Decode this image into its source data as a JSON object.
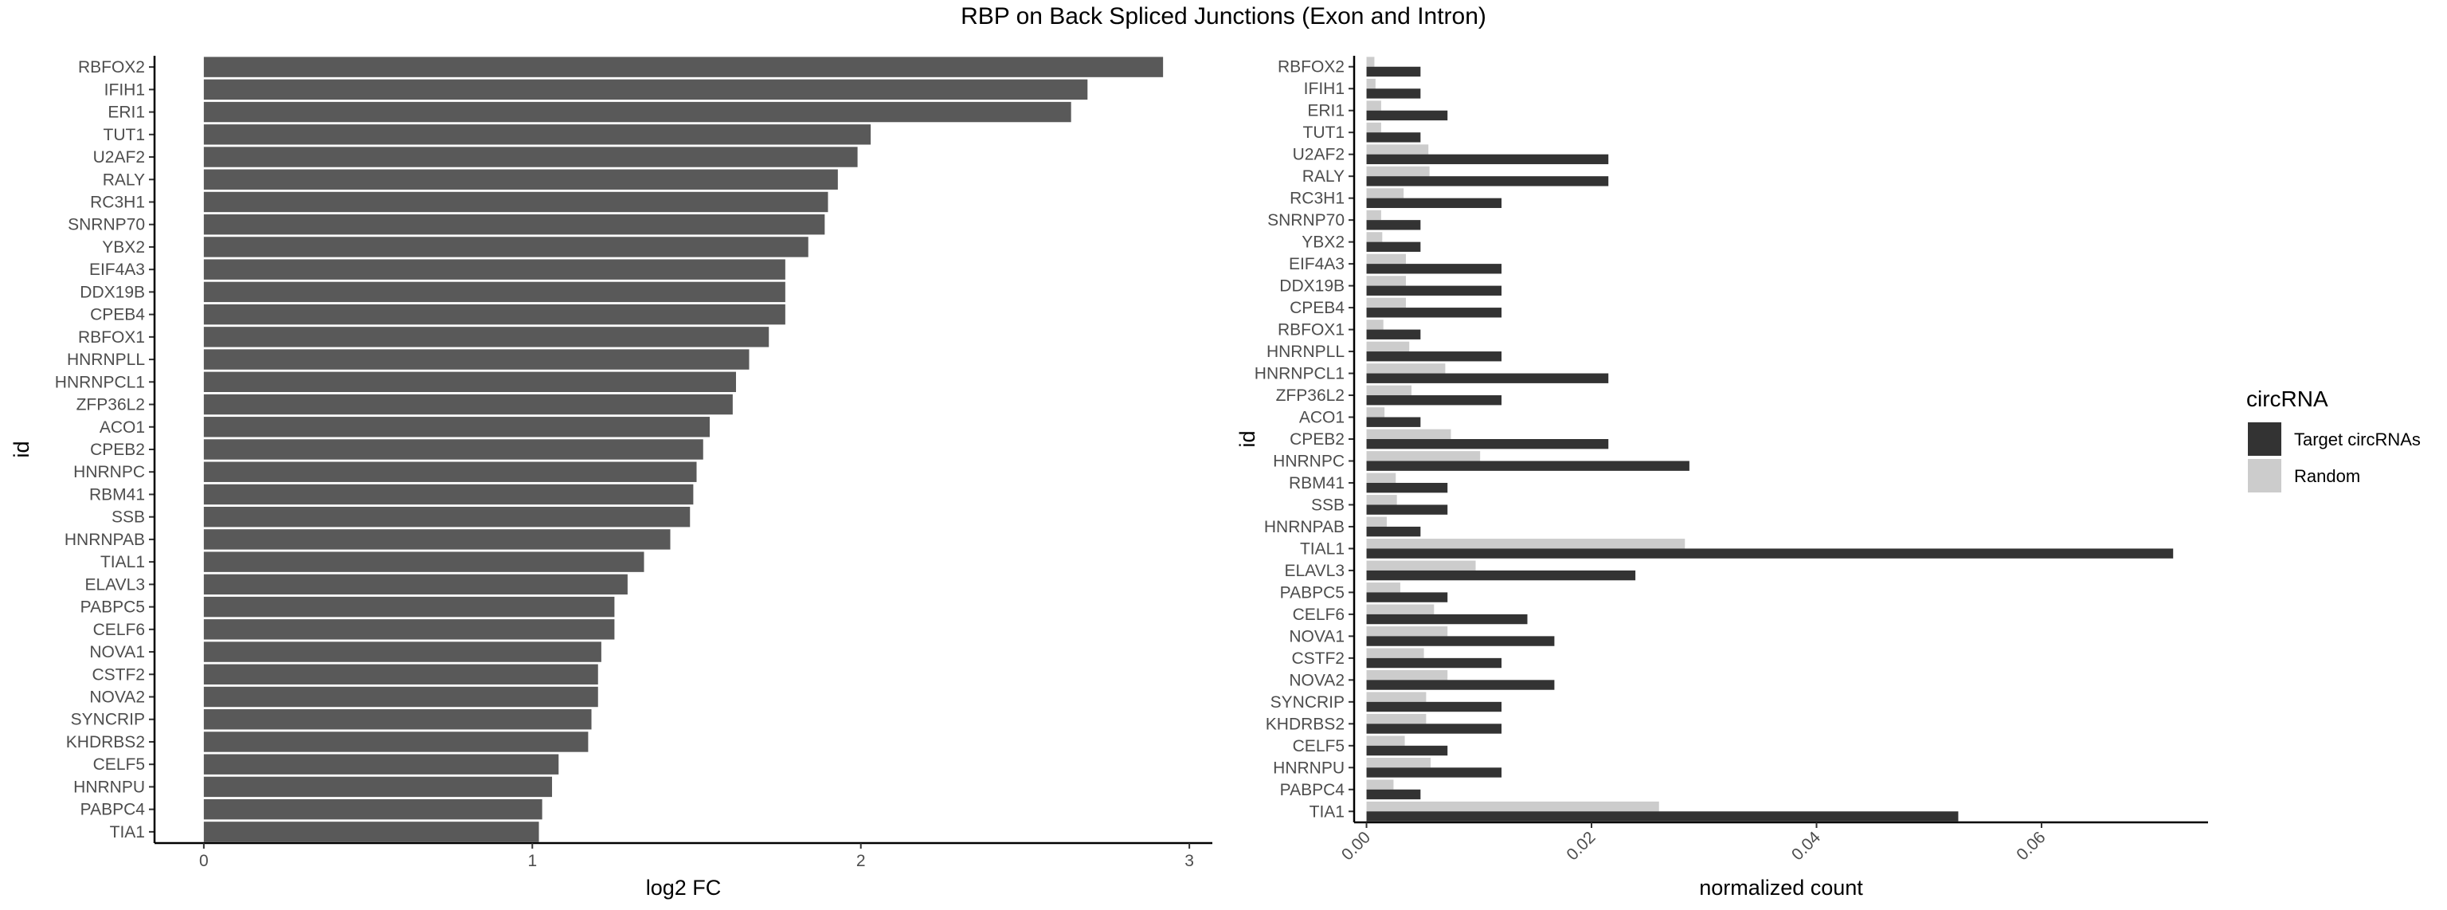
{
  "title": "RBP on Back Spliced Junctions (Exon and Intron)",
  "chart_data": [
    {
      "type": "bar",
      "orientation": "horizontal",
      "xlabel": "log2 FC",
      "ylabel": "id",
      "xlim": [
        -0.15,
        3.07
      ],
      "xticks": [
        0,
        1,
        2,
        3
      ],
      "bar_color": "#595959",
      "categories": [
        "RBFOX2",
        "IFIH1",
        "ERI1",
        "TUT1",
        "U2AF2",
        "RALY",
        "RC3H1",
        "SNRNP70",
        "YBX2",
        "EIF4A3",
        "DDX19B",
        "CPEB4",
        "RBFOX1",
        "HNRNPLL",
        "HNRNPCL1",
        "ZFP36L2",
        "ACO1",
        "CPEB2",
        "HNRNPC",
        "RBM41",
        "SSB",
        "HNRNPAB",
        "TIAL1",
        "ELAVL3",
        "PABPC5",
        "CELF6",
        "NOVA1",
        "CSTF2",
        "NOVA2",
        "SYNCRIP",
        "KHDRBS2",
        "CELF5",
        "HNRNPU",
        "PABPC4",
        "TIA1"
      ],
      "values": [
        2.92,
        2.69,
        2.64,
        2.03,
        1.99,
        1.93,
        1.9,
        1.89,
        1.84,
        1.77,
        1.77,
        1.77,
        1.72,
        1.66,
        1.62,
        1.61,
        1.54,
        1.52,
        1.5,
        1.49,
        1.48,
        1.42,
        1.34,
        1.29,
        1.25,
        1.25,
        1.21,
        1.2,
        1.2,
        1.18,
        1.17,
        1.08,
        1.06,
        1.03,
        1.02
      ]
    },
    {
      "type": "bar",
      "orientation": "horizontal",
      "grouped": true,
      "xlabel": "normalized count",
      "ylabel": "id",
      "xlim": [
        -0.0011,
        0.0748
      ],
      "xticks": [
        "0.00",
        "0.02",
        "0.04",
        "0.06"
      ],
      "categories": [
        "RBFOX2",
        "IFIH1",
        "ERI1",
        "TUT1",
        "U2AF2",
        "RALY",
        "RC3H1",
        "SNRNP70",
        "YBX2",
        "EIF4A3",
        "DDX19B",
        "CPEB4",
        "RBFOX1",
        "HNRNPLL",
        "HNRNPCL1",
        "ZFP36L2",
        "ACO1",
        "CPEB2",
        "HNRNPC",
        "RBM41",
        "SSB",
        "HNRNPAB",
        "TIAL1",
        "ELAVL3",
        "PABPC5",
        "CELF6",
        "NOVA1",
        "CSTF2",
        "NOVA2",
        "SYNCRIP",
        "KHDRBS2",
        "CELF5",
        "HNRNPU",
        "PABPC4",
        "TIA1"
      ],
      "legend": {
        "title": "circRNA",
        "position": "right"
      },
      "series": [
        {
          "name": "Target circRNAs",
          "color": "#333333",
          "values": [
            0.0048,
            0.0048,
            0.0072,
            0.0048,
            0.0215,
            0.0215,
            0.012,
            0.0048,
            0.0048,
            0.012,
            0.012,
            0.012,
            0.0048,
            0.012,
            0.0215,
            0.012,
            0.0048,
            0.0215,
            0.0287,
            0.0072,
            0.0072,
            0.0048,
            0.0717,
            0.0239,
            0.0072,
            0.0143,
            0.0167,
            0.012,
            0.0167,
            0.012,
            0.012,
            0.0072,
            0.012,
            0.0048,
            0.0526
          ]
        },
        {
          "name": "Random",
          "color": "#cccccc",
          "values": [
            0.0007,
            0.0008,
            0.0013,
            0.0013,
            0.0055,
            0.0056,
            0.0033,
            0.0013,
            0.0014,
            0.0035,
            0.0035,
            0.0035,
            0.0015,
            0.0038,
            0.007,
            0.004,
            0.0016,
            0.0075,
            0.0101,
            0.0026,
            0.0027,
            0.0018,
            0.0283,
            0.0097,
            0.003,
            0.006,
            0.0072,
            0.0051,
            0.0072,
            0.0053,
            0.0053,
            0.0034,
            0.0057,
            0.0024,
            0.026
          ]
        }
      ]
    }
  ]
}
